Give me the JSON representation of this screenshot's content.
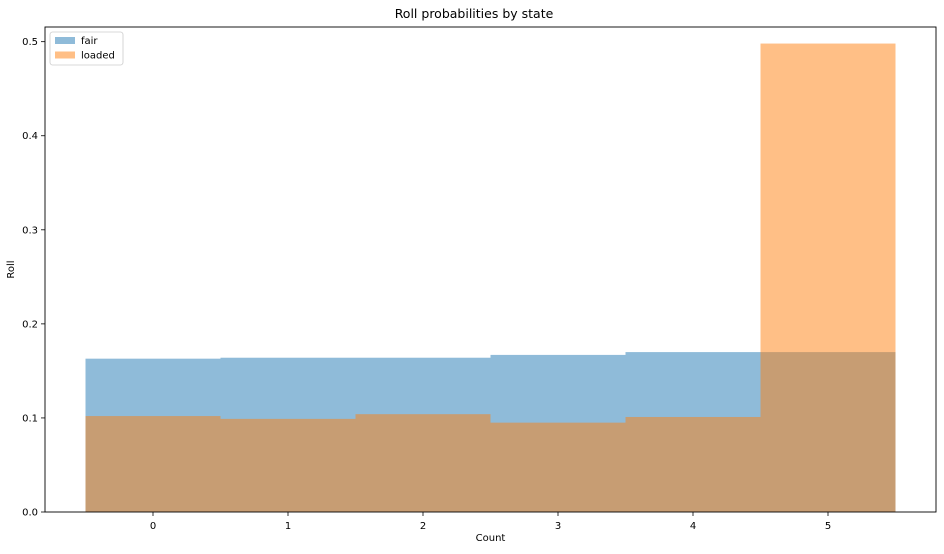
{
  "chart_data": {
    "type": "bar",
    "title": "Roll probabilities by state",
    "xlabel": "Count",
    "ylabel": "Roll",
    "categories": [
      "0",
      "1",
      "2",
      "3",
      "4",
      "5"
    ],
    "x": [
      0,
      1,
      2,
      3,
      4,
      5
    ],
    "xlim": [
      -0.5,
      5.5
    ],
    "ylim": [
      0,
      0.5
    ],
    "y_ticks": [
      "0.0",
      "0.1",
      "0.2",
      "0.3",
      "0.4",
      "0.5"
    ],
    "x_ticks": [
      "0",
      "1",
      "2",
      "3",
      "4",
      "5"
    ],
    "grid": false,
    "legend_position": "top-left",
    "series": [
      {
        "name": "fair",
        "color": "#1f77b4",
        "opacity": 0.5,
        "values": [
          0.163,
          0.164,
          0.164,
          0.167,
          0.17,
          0.17
        ]
      },
      {
        "name": "loaded",
        "color": "#ff7f0e",
        "opacity": 0.5,
        "values": [
          0.102,
          0.099,
          0.104,
          0.095,
          0.101,
          0.498
        ]
      }
    ]
  }
}
